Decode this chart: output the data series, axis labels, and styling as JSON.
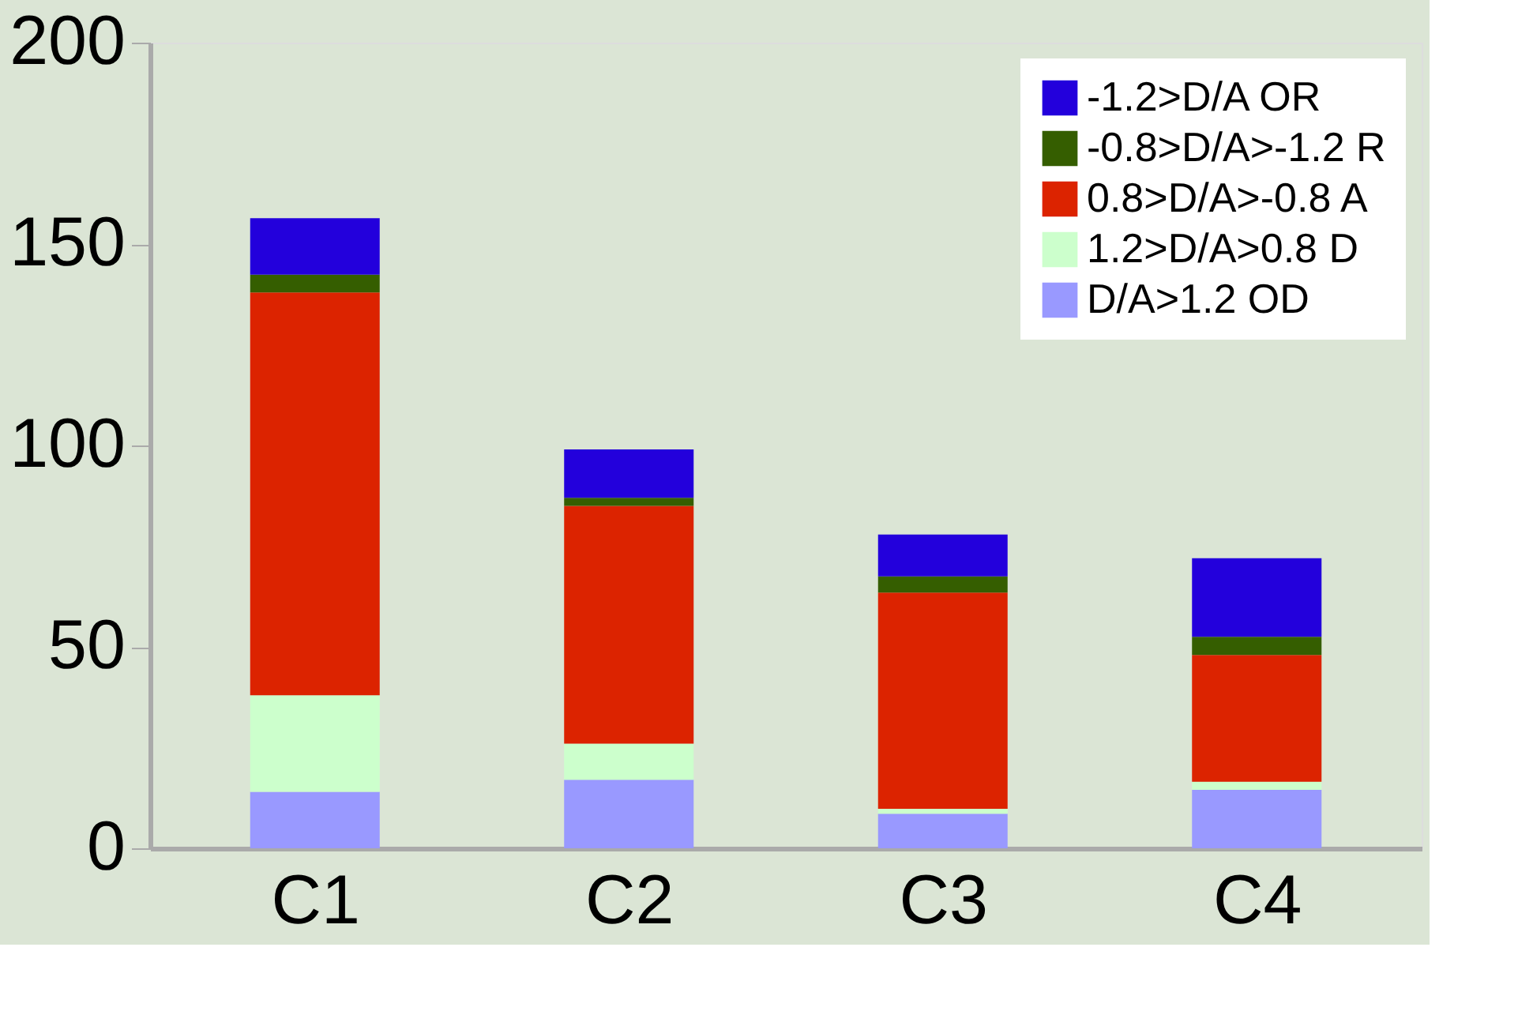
{
  "chart_data": {
    "type": "bar",
    "stacked": true,
    "categories": [
      "C1",
      "C2",
      "C3",
      "C4"
    ],
    "series": [
      {
        "name": "D/A>1.2 OD",
        "color": "#9999ff",
        "values": [
          14,
          17,
          8.6,
          14.5
        ]
      },
      {
        "name": "1.2>D/A>0.8 D",
        "color": "#ccffcc",
        "values": [
          24,
          9,
          1.2,
          2
        ]
      },
      {
        "name": "0.8>D/A>-0.8 A",
        "color": "#dc2300",
        "values": [
          100,
          59,
          53.7,
          31.5
        ]
      },
      {
        "name": "-0.8>D/A>-1.2 R",
        "color": "#355e00",
        "values": [
          4.4,
          2,
          4,
          4.5
        ]
      },
      {
        "name": "-1.2>D/A OR",
        "color": "#2300dc",
        "values": [
          14,
          12,
          10.4,
          19.5
        ]
      }
    ],
    "ylim": [
      0,
      200
    ],
    "yticks": [
      0,
      50,
      100,
      150,
      200
    ],
    "grid": false,
    "legend": "top right"
  }
}
